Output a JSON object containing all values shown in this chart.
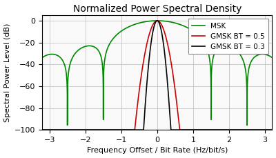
{
  "title": "Normalized Power Spectral Density",
  "xlabel": "Frequency Offset / Bit Rate (Hz/bit/s)",
  "ylabel": "Spectral Power Level (dB)",
  "xlim": [
    -3.2,
    3.2
  ],
  "ylim": [
    -100,
    5
  ],
  "yticks": [
    0,
    -20,
    -40,
    -60,
    -80,
    -100
  ],
  "xticks": [
    -3,
    -2,
    -1,
    0,
    1,
    2,
    3
  ],
  "msk_color": "#008800",
  "gmsk05_color": "#cc0000",
  "gmsk03_color": "#000000",
  "legend_labels": [
    "MSK",
    "GMSK BT = 0.5",
    "GMSK BT = 0.3"
  ],
  "figsize": [
    4.0,
    2.29
  ],
  "dpi": 100,
  "floor_dB": -100
}
